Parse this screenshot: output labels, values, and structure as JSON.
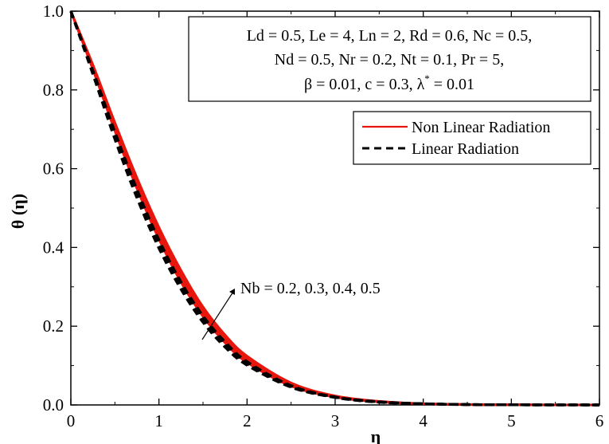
{
  "chart_data": {
    "type": "line",
    "xlabel": "η",
    "ylabel": "θ (η)",
    "xlim": [
      0,
      6
    ],
    "ylim": [
      0,
      1
    ],
    "xticks": [
      "0",
      "1",
      "2",
      "3",
      "4",
      "5",
      "6"
    ],
    "yticks": [
      "0.0",
      "0.2",
      "0.4",
      "0.6",
      "0.8",
      "1.0"
    ],
    "parameters": [
      "Ld = 0.5, Le = 4, Ln = 2, Rd = 0.6, Nc = 0.5,",
      "Nd = 0.5, Nr = 0.2, Nt = 0.1, Pr = 5,"
    ],
    "parameters_line3": {
      "before": "β = 0.01, c = 0.3, λ",
      "sup": "*",
      "after": " = 0.01"
    },
    "annotation": "Nb = 0.2, 0.3, 0.4, 0.5",
    "legend_position": "top-right",
    "x": [
      0,
      0.25,
      0.5,
      0.75,
      1.0,
      1.25,
      1.5,
      1.75,
      2.0,
      2.5,
      3.0,
      3.5,
      4.0,
      4.5,
      5.0,
      5.5,
      6.0
    ],
    "series": [
      {
        "name": "Non Linear Radiation",
        "color": "#e8160c",
        "dash": "solid",
        "nb": 0.2,
        "values": [
          1.0,
          0.852,
          0.696,
          0.55,
          0.421,
          0.312,
          0.225,
          0.158,
          0.108,
          0.048,
          0.02,
          0.008,
          0.003,
          0.001,
          0.0004,
          0.0001,
          0.0
        ]
      },
      {
        "name": "Non Linear Radiation",
        "color": "#e8160c",
        "dash": "solid",
        "nb": 0.3,
        "values": [
          1.0,
          0.856,
          0.703,
          0.559,
          0.431,
          0.322,
          0.233,
          0.165,
          0.114,
          0.051,
          0.021,
          0.008,
          0.003,
          0.001,
          0.0004,
          0.0001,
          0.0
        ]
      },
      {
        "name": "Non Linear Radiation",
        "color": "#e8160c",
        "dash": "solid",
        "nb": 0.4,
        "values": [
          1.0,
          0.86,
          0.71,
          0.568,
          0.441,
          0.332,
          0.241,
          0.172,
          0.119,
          0.054,
          0.022,
          0.009,
          0.003,
          0.001,
          0.0004,
          0.0001,
          0.0
        ]
      },
      {
        "name": "Non Linear Radiation",
        "color": "#e8160c",
        "dash": "solid",
        "nb": 0.5,
        "values": [
          1.0,
          0.864,
          0.717,
          0.577,
          0.451,
          0.342,
          0.249,
          0.178,
          0.124,
          0.056,
          0.023,
          0.009,
          0.003,
          0.001,
          0.0004,
          0.0001,
          0.0
        ]
      },
      {
        "name": "Linear Radiation",
        "color": "#000000",
        "dash": "dashed",
        "nb": 0.2,
        "values": [
          1.0,
          0.84,
          0.675,
          0.526,
          0.398,
          0.294,
          0.21,
          0.147,
          0.101,
          0.045,
          0.019,
          0.007,
          0.003,
          0.001,
          0.0004,
          0.0001,
          0.0
        ]
      },
      {
        "name": "Linear Radiation",
        "color": "#000000",
        "dash": "dashed",
        "nb": 0.3,
        "values": [
          1.0,
          0.843,
          0.681,
          0.533,
          0.405,
          0.3,
          0.216,
          0.152,
          0.104,
          0.046,
          0.019,
          0.007,
          0.003,
          0.001,
          0.0004,
          0.0001,
          0.0
        ]
      },
      {
        "name": "Linear Radiation",
        "color": "#000000",
        "dash": "dashed",
        "nb": 0.4,
        "values": [
          1.0,
          0.846,
          0.687,
          0.54,
          0.412,
          0.306,
          0.221,
          0.156,
          0.107,
          0.047,
          0.02,
          0.008,
          0.003,
          0.001,
          0.0004,
          0.0001,
          0.0
        ]
      },
      {
        "name": "Linear Radiation",
        "color": "#000000",
        "dash": "dashed",
        "nb": 0.5,
        "values": [
          1.0,
          0.849,
          0.693,
          0.547,
          0.419,
          0.312,
          0.226,
          0.16,
          0.11,
          0.049,
          0.02,
          0.008,
          0.003,
          0.001,
          0.0004,
          0.0001,
          0.0
        ]
      }
    ],
    "legend": [
      {
        "label": "Non Linear Radiation",
        "color": "#e8160c",
        "dash": "solid"
      },
      {
        "label": "Linear Radiation",
        "color": "#000000",
        "dash": "dashed"
      }
    ],
    "grid": false
  }
}
